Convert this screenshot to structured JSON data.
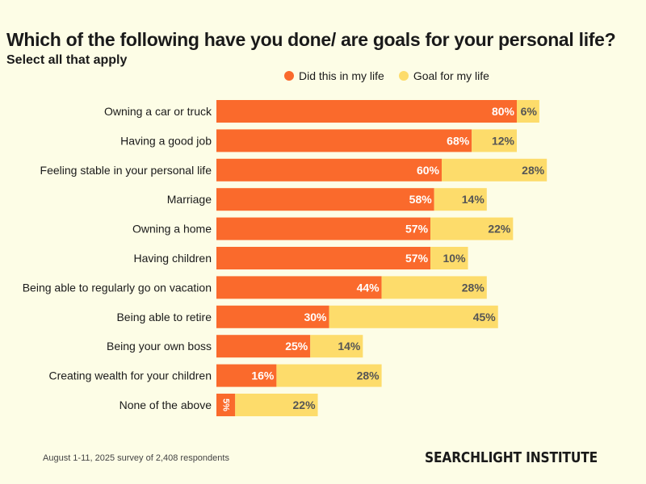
{
  "colors": {
    "did": "#fa6a2c",
    "goal": "#fddc6b",
    "background": "#fdfde6"
  },
  "legend": {
    "did_label": "Did this in my life",
    "goal_label": "Goal for my life"
  },
  "footnote": "August 1-11, 2025 survey of 2,408 respondents",
  "brand": "SEARCHLIGHT INSTITUTE",
  "chart_data": {
    "type": "bar",
    "orientation": "horizontal",
    "stacked": true,
    "title": "Which of the following have you done/ are goals for your personal life?",
    "subtitle": "Select all that apply",
    "legend_position": "top",
    "grid": false,
    "xlim": [
      0,
      100
    ],
    "categories": [
      "Owning a car or truck",
      "Having a good job",
      "Feeling stable in your personal life",
      "Marriage",
      "Owning a home",
      "Having children",
      "Being able to regularly go on vacation",
      "Being able to retire",
      "Being your own boss",
      "Creating wealth for your children",
      "None of the above"
    ],
    "series": [
      {
        "name": "Did this in my life",
        "values": [
          80,
          68,
          60,
          58,
          57,
          57,
          44,
          30,
          25,
          16,
          5
        ]
      },
      {
        "name": "Goal for my life",
        "values": [
          6,
          12,
          28,
          14,
          22,
          10,
          28,
          45,
          14,
          28,
          22
        ]
      }
    ]
  }
}
